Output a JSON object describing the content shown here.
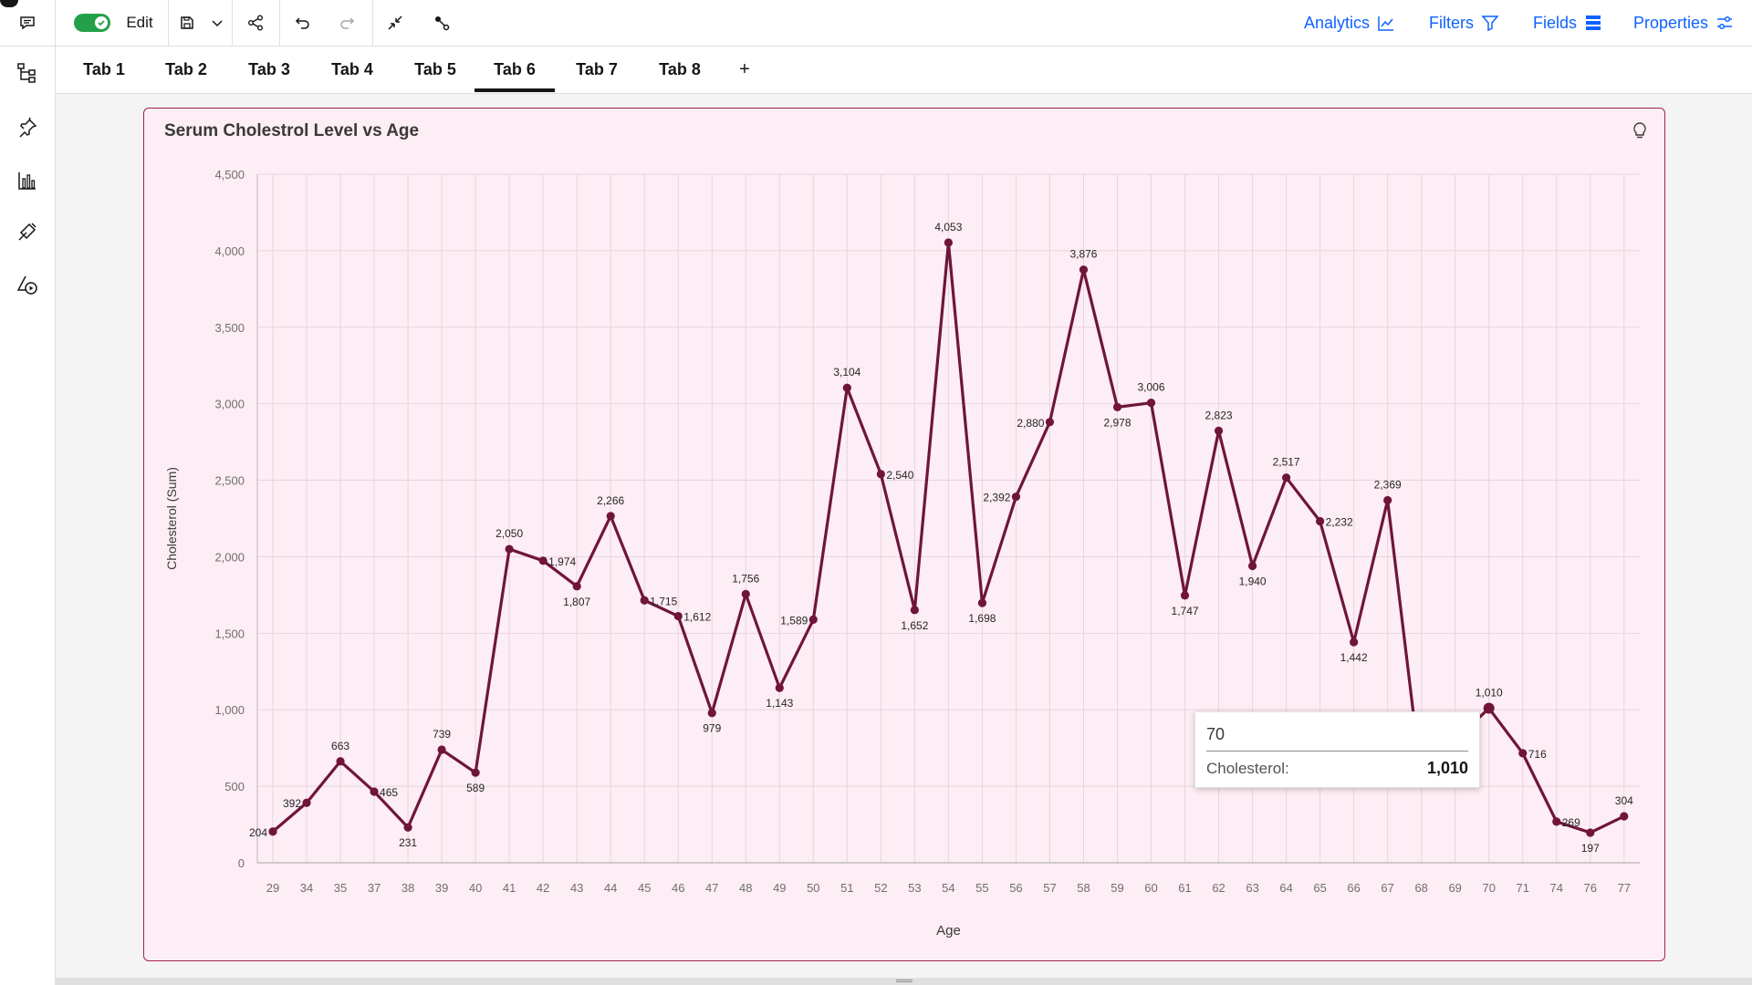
{
  "toolbar": {
    "edit_label": "Edit",
    "analytics_label": "Analytics",
    "filters_label": "Filters",
    "fields_label": "Fields",
    "properties_label": "Properties"
  },
  "tabs": [
    {
      "label": "Tab 1"
    },
    {
      "label": "Tab 2"
    },
    {
      "label": "Tab 3"
    },
    {
      "label": "Tab 4"
    },
    {
      "label": "Tab 5"
    },
    {
      "label": "Tab 6",
      "active": true
    },
    {
      "label": "Tab 7"
    },
    {
      "label": "Tab 8"
    }
  ],
  "tab_add_label": "+",
  "colors": {
    "accent": "#0f62fe",
    "series": "#6f1539",
    "card_bg": "#fdedf4",
    "card_border": "#a3234f",
    "toggle_on": "#24a148"
  },
  "chart_data": {
    "type": "line",
    "title": "Serum Cholestrol Level vs Age",
    "xlabel": "Age",
    "ylabel": "Cholesterol (Sum)",
    "ylim": [
      0,
      4500
    ],
    "yticks": [
      0,
      500,
      1000,
      1500,
      2000,
      2500,
      3000,
      3500,
      4000,
      4500
    ],
    "ytick_labels": [
      "0",
      "500",
      "1,000",
      "1,500",
      "2,000",
      "2,500",
      "3,000",
      "3,500",
      "4,000",
      "4,500"
    ],
    "grid": true,
    "categories": [
      "29",
      "34",
      "35",
      "37",
      "38",
      "39",
      "40",
      "41",
      "42",
      "43",
      "44",
      "45",
      "46",
      "47",
      "48",
      "49",
      "50",
      "51",
      "52",
      "53",
      "54",
      "55",
      "56",
      "57",
      "58",
      "59",
      "60",
      "61",
      "62",
      "63",
      "64",
      "65",
      "66",
      "67",
      "68",
      "69",
      "70",
      "71",
      "74",
      "76",
      "77"
    ],
    "series": [
      {
        "values": [
          204,
          392,
          663,
          465,
          231,
          739,
          589,
          2050,
          1974,
          1807,
          2266,
          1715,
          1612,
          979,
          1756,
          1143,
          1589,
          3104,
          2540,
          1652,
          4053,
          1698,
          2392,
          2880,
          3876,
          2978,
          3006,
          1747,
          2823,
          1940,
          2517,
          2232,
          1442,
          2369,
          545,
          800,
          1010,
          716,
          269,
          197,
          304
        ],
        "data_labels": [
          "204",
          "392",
          "663",
          "465",
          "231",
          "739",
          "589",
          "2,050",
          "1,974",
          "1,807",
          "2,266",
          "1,715",
          "1,612",
          "979",
          "1,756",
          "1,143",
          "1,589",
          "3,104",
          "2,540",
          "1,652",
          "4,053",
          "1,698",
          "2,392",
          "2,880",
          "3,876",
          "2,978",
          "3,006",
          "1,747",
          "2,823",
          "1,940",
          "2,517",
          "2,232",
          "1,442",
          "2,369",
          "",
          "",
          "1,010",
          "716",
          "269",
          "197",
          "304"
        ]
      }
    ],
    "tooltip": {
      "title": "70",
      "label": "Cholesterol:",
      "value": "1,010"
    }
  }
}
